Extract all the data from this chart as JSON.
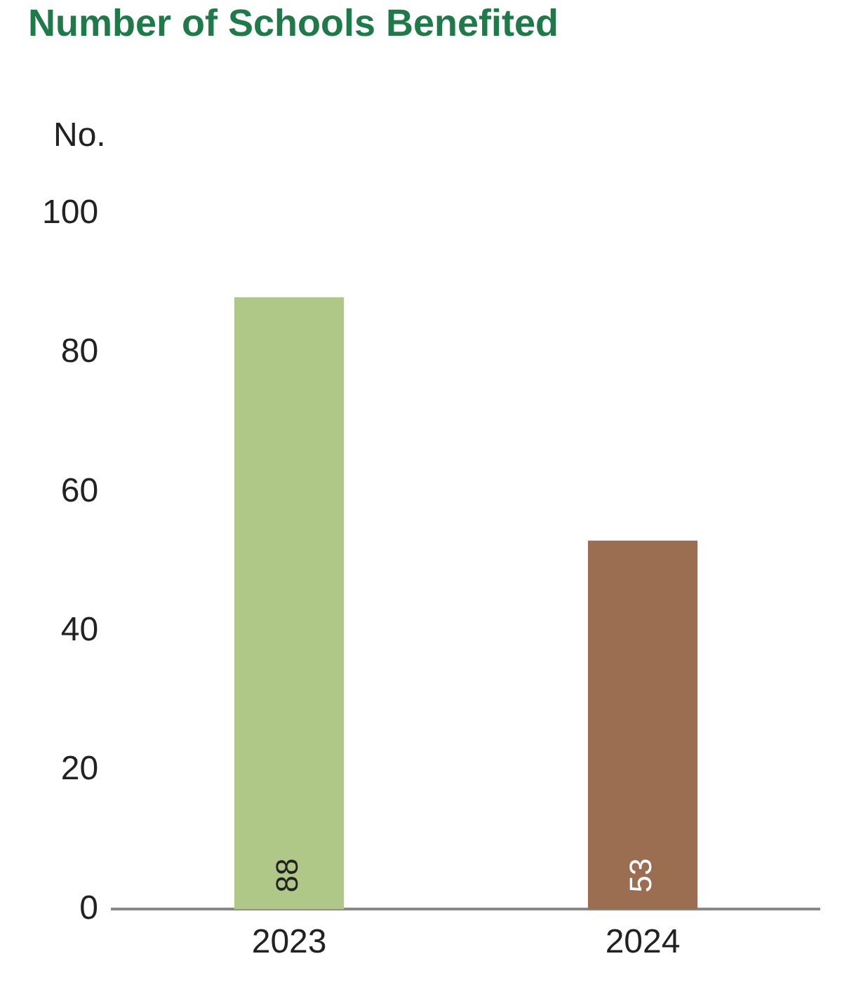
{
  "chart_data": {
    "type": "bar",
    "title": "Number of Schools Benefited",
    "ylabel": "No.",
    "categories": [
      "2023",
      "2024"
    ],
    "values": [
      88,
      53
    ],
    "colors": [
      "#afc887",
      "#9c6e51"
    ],
    "ylim": [
      0,
      100
    ],
    "yticks": [
      0,
      20,
      40,
      60,
      80,
      100
    ],
    "grid": false,
    "legend": false,
    "data_labels": true
  }
}
